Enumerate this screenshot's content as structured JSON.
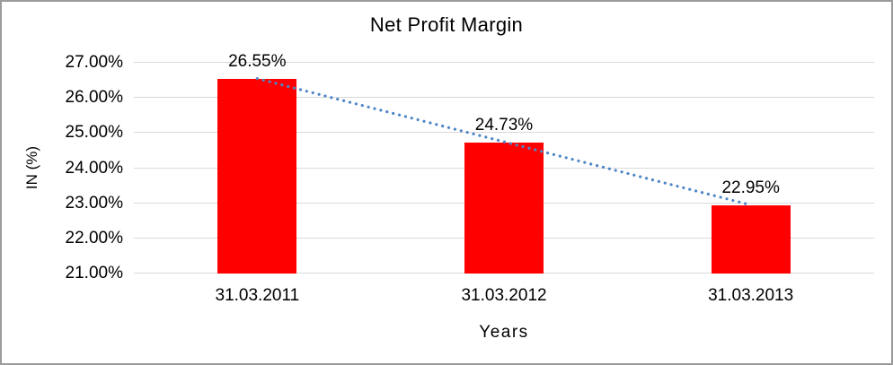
{
  "figure": {
    "background": "#ffffff",
    "frame_color": "#9b9b9b"
  },
  "chart_data": {
    "type": "bar",
    "title": "Net Profit Margin",
    "categories": [
      "31.03.2011",
      "31.03.2012",
      "31.03.2013"
    ],
    "values": [
      26.55,
      24.73,
      22.95
    ],
    "data_labels": [
      "26.55%",
      "24.73%",
      "22.95%"
    ],
    "xlabel": "Years",
    "ylabel": "IN (%)",
    "ylim": [
      21,
      27
    ],
    "ytick_step": 1,
    "ytick_labels": [
      "21.00%",
      "22.00%",
      "23.00%",
      "24.00%",
      "25.00%",
      "26.00%",
      "27.00%"
    ],
    "grid": true,
    "legend_position": "none",
    "bar_color": "#ff0000",
    "gridline_color": "#d9d9d9",
    "trendline": {
      "type": "linear",
      "style": "dotted",
      "color": "#4f86c6",
      "start_value": 26.55,
      "end_value": 22.95
    }
  }
}
